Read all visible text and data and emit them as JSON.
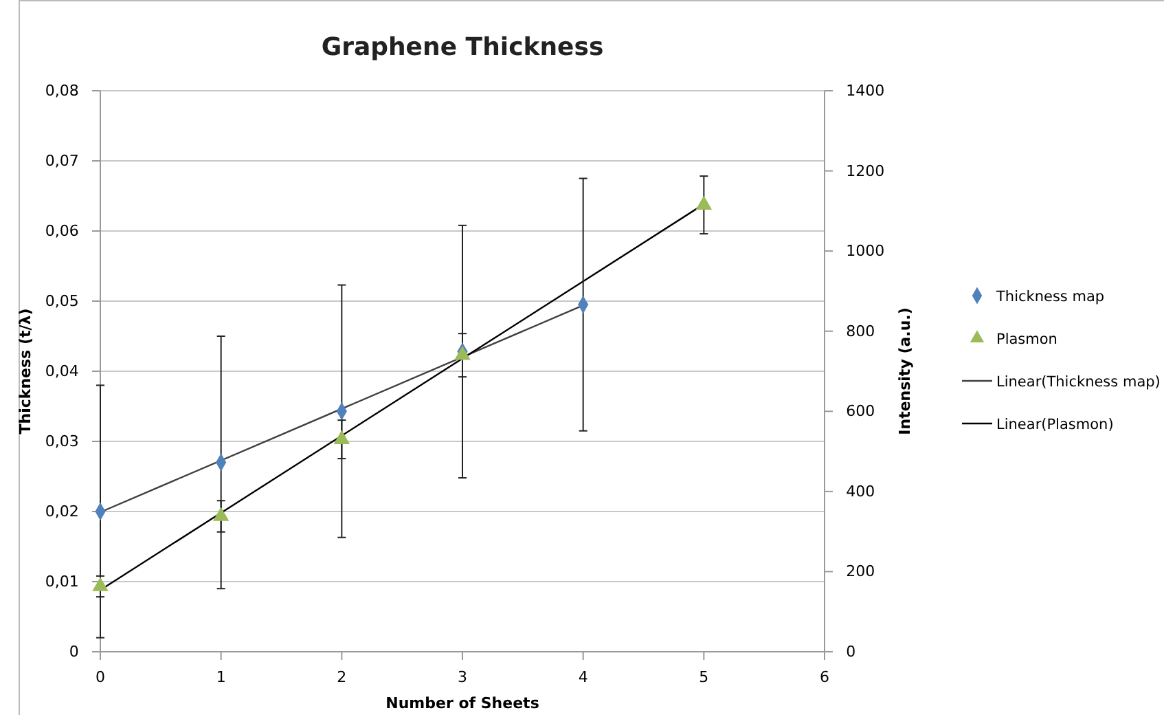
{
  "chart_data": {
    "type": "scatter",
    "title": "Graphene Thickness",
    "xlabel": "Number of Sheets",
    "ylabel": "Thickness  (t/λ)",
    "y2label": "Intensity (a.u.)",
    "xlim": [
      0,
      6
    ],
    "xticks": [
      0,
      1,
      2,
      3,
      4,
      5,
      6
    ],
    "ylim": [
      0,
      0.08
    ],
    "yticks": [
      0,
      {
        "value": 0.01,
        "label": "0,01"
      },
      {
        "value": 0.02,
        "label": "0,02"
      },
      {
        "value": 0.03,
        "label": "0,03"
      },
      {
        "value": 0.04,
        "label": "0,04"
      },
      {
        "value": 0.05,
        "label": "0,05"
      },
      {
        "value": 0.06,
        "label": "0,06"
      },
      {
        "value": 0.07,
        "label": "0,07"
      },
      {
        "value": 0.08,
        "label": "0,08"
      }
    ],
    "y2lim": [
      0,
      1400
    ],
    "y2ticks": [
      0,
      200,
      400,
      600,
      800,
      1000,
      1200,
      1400
    ],
    "grid": "y",
    "legend": "right",
    "series": [
      {
        "name": "Thickness map",
        "marker": "diamond",
        "color": "#4f81bd",
        "x": [
          0,
          1,
          2,
          3,
          4
        ],
        "values": [
          0.02,
          0.027,
          0.0343,
          0.0428,
          0.0495
        ],
        "errors": [
          0.018,
          0.018,
          0.018,
          0.018,
          0.018
        ]
      },
      {
        "name": "Plasmon",
        "marker": "triangle",
        "axis": "y2",
        "color": "#9bbb59",
        "x": [
          0,
          1,
          2,
          3,
          5
        ],
        "values": [
          163,
          338,
          530,
          740,
          1115
        ],
        "errors": [
          26,
          39,
          48,
          54,
          72
        ]
      },
      {
        "name": "Linear(Thickness map)",
        "type": "line",
        "marker": "none",
        "color": "#404040",
        "x": [
          0,
          4
        ],
        "values": [
          0.0199,
          0.0494
        ]
      },
      {
        "name": "Linear(Plasmon)",
        "type": "line",
        "marker": "none",
        "axis": "y2",
        "color": "#000000",
        "x": [
          0,
          5
        ],
        "values": [
          154,
          1117
        ]
      }
    ]
  }
}
